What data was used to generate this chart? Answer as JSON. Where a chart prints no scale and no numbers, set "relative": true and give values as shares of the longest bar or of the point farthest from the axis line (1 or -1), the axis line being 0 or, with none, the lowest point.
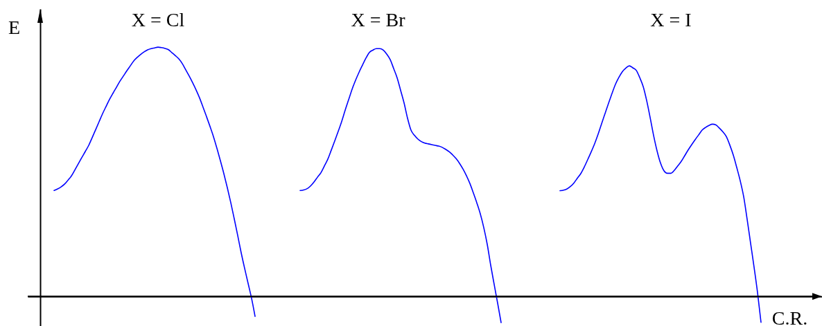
{
  "chart_data": {
    "type": "line",
    "relative": true,
    "xlabel": "C.R.",
    "ylabel": "E",
    "categories": [
      null,
      null,
      null,
      null,
      null,
      null,
      null,
      null,
      null,
      null,
      null,
      null,
      null,
      null,
      null,
      null,
      null,
      null,
      null,
      null,
      null,
      null,
      null,
      null,
      null,
      null,
      null,
      null,
      null,
      null,
      null,
      null,
      null,
      null,
      null,
      null,
      null,
      null,
      null,
      null,
      null,
      null,
      null,
      null,
      null,
      null,
      null,
      null,
      null,
      null,
      null,
      null,
      null,
      null,
      null,
      null,
      null,
      null,
      null,
      null,
      null,
      null,
      null,
      null,
      null,
      null,
      null,
      null,
      null,
      null,
      null,
      null,
      null,
      null,
      null,
      null,
      null,
      null,
      null,
      null,
      null,
      null,
      null,
      null,
      null,
      null,
      null,
      null,
      null,
      null,
      null,
      null,
      null,
      null,
      null,
      null,
      null,
      null,
      null,
      null,
      null,
      null,
      null,
      null,
      null,
      null,
      null,
      null,
      null,
      null,
      null,
      null,
      null,
      null,
      null,
      null,
      null,
      null,
      null,
      null,
      null,
      null,
      null,
      null,
      null,
      null,
      null,
      null,
      null,
      null,
      null,
      null,
      null,
      null,
      null,
      null,
      null,
      null,
      null,
      null,
      null,
      null,
      null,
      null,
      null,
      null,
      null,
      null,
      null,
      null,
      null,
      null,
      null,
      null,
      null,
      null,
      null,
      null,
      null,
      null,
      null,
      null,
      null,
      null,
      null,
      null,
      null,
      null,
      null,
      null,
      null,
      null,
      null,
      null,
      null,
      null,
      null,
      null,
      null,
      null,
      null,
      null,
      null,
      null,
      null,
      null,
      null,
      null,
      null,
      null,
      null,
      null,
      null,
      null,
      null,
      null,
      null,
      null,
      null,
      null,
      null,
      null,
      null,
      null,
      null
    ],
    "series": [
      {
        "name": "X = Cl",
        "color": "#0000ff",
        "values": [
          0.425,
          0.431,
          0.439,
          0.45,
          0.466,
          0.483,
          0.507,
          0.532,
          0.557,
          0.581,
          0.606,
          0.637,
          0.669,
          0.701,
          0.733,
          0.762,
          0.79,
          0.815,
          0.839,
          0.863,
          0.884,
          0.905,
          0.925,
          0.945,
          0.959,
          0.971,
          0.981,
          0.989,
          0.994,
          0.997,
          1.0,
          0.998,
          0.995,
          0.99,
          0.978,
          0.966,
          0.953,
          0.934,
          0.909,
          0.884,
          0.857,
          0.828,
          0.796,
          0.759,
          0.721,
          0.682,
          0.641,
          0.594,
          0.544,
          0.492,
          0.436,
          0.376,
          0.311,
          0.244,
          0.175,
          0.112,
          0.052,
          -0.008,
          -0.08,
          null,
          null,
          null,
          null,
          null,
          null,
          null,
          null,
          null,
          null,
          null,
          null,
          null,
          null,
          null,
          null,
          null,
          null,
          null,
          null,
          null,
          null,
          null,
          null,
          null,
          null,
          null,
          null,
          null,
          null,
          null,
          null,
          null,
          null,
          null,
          null,
          null,
          null,
          null,
          null,
          null,
          null,
          null,
          null,
          null,
          null,
          null,
          null,
          null,
          null,
          null,
          null,
          null,
          null,
          null,
          null,
          null,
          null,
          null,
          null,
          null,
          null,
          null,
          null,
          null,
          null,
          null,
          null,
          null,
          null,
          null,
          null,
          null,
          null,
          null,
          null,
          null,
          null,
          null,
          null,
          null,
          null,
          null,
          null,
          null,
          null,
          null,
          null,
          null,
          null,
          null,
          null,
          null,
          null,
          null,
          null,
          null,
          null,
          null,
          null,
          null,
          null,
          null,
          null,
          null,
          null,
          null,
          null,
          null,
          null,
          null,
          null,
          null,
          null,
          null,
          null,
          null,
          null,
          null,
          null,
          null,
          null,
          null,
          null,
          null,
          null,
          null,
          null,
          null,
          null,
          null,
          null,
          null,
          null,
          null,
          null,
          null,
          null,
          null,
          null,
          null,
          null,
          null,
          null,
          null,
          null
        ]
      },
      {
        "name": "X = Br",
        "color": "#0000ff",
        "values": [
          null,
          null,
          null,
          null,
          null,
          null,
          null,
          null,
          null,
          null,
          null,
          null,
          null,
          null,
          null,
          null,
          null,
          null,
          null,
          null,
          null,
          null,
          null,
          null,
          null,
          null,
          null,
          null,
          null,
          null,
          null,
          null,
          null,
          null,
          null,
          null,
          null,
          null,
          null,
          null,
          null,
          null,
          null,
          null,
          null,
          null,
          null,
          null,
          null,
          null,
          null,
          null,
          null,
          null,
          null,
          null,
          null,
          null,
          null,
          null,
          null,
          null,
          null,
          null,
          null,
          null,
          null,
          null,
          null,
          null,
          null,
          0.425,
          0.427,
          0.432,
          0.443,
          0.459,
          0.478,
          0.496,
          0.523,
          0.551,
          0.587,
          0.624,
          0.662,
          0.702,
          0.747,
          0.789,
          0.831,
          0.867,
          0.899,
          0.928,
          0.956,
          0.979,
          0.988,
          0.994,
          0.994,
          0.988,
          0.972,
          0.95,
          0.914,
          0.877,
          0.827,
          0.776,
          0.715,
          0.667,
          0.646,
          0.631,
          0.621,
          0.615,
          0.612,
          0.609,
          0.606,
          0.603,
          0.598,
          0.59,
          0.581,
          0.568,
          0.553,
          0.534,
          0.511,
          0.484,
          0.453,
          0.415,
          0.375,
          0.331,
          0.276,
          0.209,
          0.125,
          0.048,
          -0.027,
          -0.105,
          null,
          null,
          null,
          null,
          null,
          null,
          null,
          null,
          null,
          null,
          null,
          null,
          null,
          null,
          null,
          null,
          null,
          null,
          null,
          null,
          null,
          null,
          null,
          null,
          null,
          null,
          null,
          null,
          null,
          null,
          null,
          null,
          null,
          null,
          null,
          null,
          null,
          null,
          null,
          null,
          null,
          null,
          null,
          null,
          null,
          null,
          null,
          null,
          null,
          null,
          null,
          null,
          null,
          null,
          null,
          null,
          null,
          null,
          null,
          null,
          null,
          null,
          null,
          null,
          null,
          null,
          null,
          null,
          null,
          null,
          null,
          null,
          null,
          null,
          null
        ]
      },
      {
        "name": "X = I",
        "color": "#0000ff",
        "values": [
          null,
          null,
          null,
          null,
          null,
          null,
          null,
          null,
          null,
          null,
          null,
          null,
          null,
          null,
          null,
          null,
          null,
          null,
          null,
          null,
          null,
          null,
          null,
          null,
          null,
          null,
          null,
          null,
          null,
          null,
          null,
          null,
          null,
          null,
          null,
          null,
          null,
          null,
          null,
          null,
          null,
          null,
          null,
          null,
          null,
          null,
          null,
          null,
          null,
          null,
          null,
          null,
          null,
          null,
          null,
          null,
          null,
          null,
          null,
          null,
          null,
          null,
          null,
          null,
          null,
          null,
          null,
          null,
          null,
          null,
          null,
          null,
          null,
          null,
          null,
          null,
          null,
          null,
          null,
          null,
          null,
          null,
          null,
          null,
          null,
          null,
          null,
          null,
          null,
          null,
          null,
          null,
          null,
          null,
          null,
          null,
          null,
          null,
          null,
          null,
          null,
          null,
          null,
          null,
          null,
          null,
          null,
          null,
          null,
          null,
          null,
          null,
          null,
          null,
          null,
          null,
          null,
          null,
          null,
          null,
          null,
          null,
          null,
          null,
          null,
          null,
          null,
          null,
          null,
          null,
          null,
          null,
          null,
          null,
          null,
          null,
          null,
          null,
          null,
          null,
          null,
          null,
          null,
          null,
          null,
          null,
          0.424,
          0.426,
          0.431,
          0.441,
          0.455,
          0.474,
          0.493,
          0.519,
          0.549,
          0.58,
          0.613,
          0.651,
          0.693,
          0.734,
          0.775,
          0.814,
          0.851,
          0.879,
          0.902,
          0.916,
          0.925,
          0.917,
          0.907,
          0.878,
          0.842,
          0.786,
          0.718,
          0.646,
          0.584,
          0.535,
          0.504,
          0.494,
          0.494,
          0.506,
          0.524,
          0.542,
          0.565,
          0.588,
          0.609,
          0.629,
          0.648,
          0.667,
          0.678,
          0.686,
          0.691,
          0.688,
          0.675,
          0.66,
          0.641,
          0.607,
          0.567,
          0.517,
          0.464,
          0.4,
          0.309,
          0.213,
          0.117,
          0.015,
          -0.104
        ]
      }
    ]
  }
}
